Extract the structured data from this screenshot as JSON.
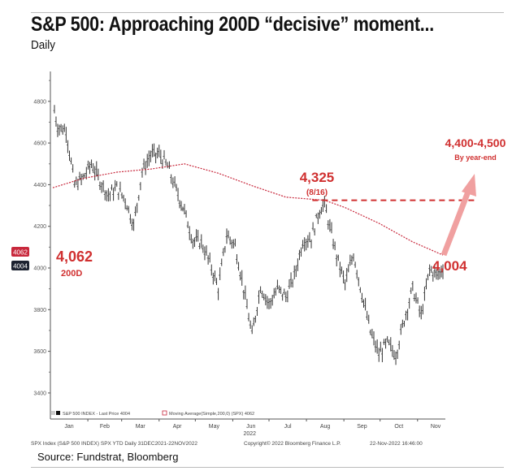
{
  "header": {
    "title": "S&P 500: Approaching 200D “decisive” moment...",
    "subtitle": "Daily"
  },
  "source": "Source: Fundstrat, Bloomberg",
  "footer": {
    "left": "SPX Index (S&P 500 INDEX) SPX YTD  Daily 31DEC2021-22NOV2022",
    "center": "Copyright© 2022 Bloomberg Finance L.P.",
    "right": "22-Nov-2022 16:46:00"
  },
  "legend": {
    "price": "S&P 500 INDEX - Last Price 4004",
    "ma": "Moving Average(Simple,200,0) (SPX) 4062"
  },
  "annotations": {
    "ma_value": "4,062",
    "ma_label": "200D",
    "peak_value": "4,325",
    "peak_date": "(8/16)",
    "last_value": "4,004",
    "target_value": "4,400-4,500",
    "target_label": "By year-end",
    "tag_ma": "4062",
    "tag_price": "4004"
  },
  "colors": {
    "price": "#333333",
    "ma": "#c8283c",
    "annotation": "#d03030",
    "arrow": "#f0a0a0",
    "tag_ma": "#c8283c",
    "tag_price": "#1c2230"
  },
  "chart_data": {
    "type": "line",
    "title": "S&P 500: Approaching 200D “decisive” moment...",
    "xlabel": "2022",
    "ylabel": "",
    "ylim": [
      3350,
      4900
    ],
    "yticks": [
      3400,
      3600,
      3800,
      4000,
      4200,
      4400,
      4600,
      4800
    ],
    "xticks": [
      "Jan",
      "Feb",
      "Mar",
      "Apr",
      "May",
      "Jun",
      "Jul",
      "Aug",
      "Sep",
      "Oct",
      "Nov"
    ],
    "grid": false,
    "legend_placement": "bottom-left",
    "reference_line": {
      "value": 4325,
      "style": "dashed",
      "from": "2022-08-16"
    },
    "target_range": [
      4400,
      4500
    ],
    "series": [
      {
        "name": "S&P 500 INDEX - Last Price",
        "style": "bars",
        "points": [
          [
            "2022-01-03",
            4796
          ],
          [
            "2022-01-07",
            4677
          ],
          [
            "2022-01-14",
            4662
          ],
          [
            "2022-01-21",
            4398
          ],
          [
            "2022-01-28",
            4432
          ],
          [
            "2022-02-04",
            4500
          ],
          [
            "2022-02-11",
            4419
          ],
          [
            "2022-02-18",
            4349
          ],
          [
            "2022-02-25",
            4385
          ],
          [
            "2022-03-04",
            4329
          ],
          [
            "2022-03-11",
            4204
          ],
          [
            "2022-03-18",
            4463
          ],
          [
            "2022-03-25",
            4543
          ],
          [
            "2022-04-01",
            4546
          ],
          [
            "2022-04-08",
            4488
          ],
          [
            "2022-04-14",
            4392
          ],
          [
            "2022-04-22",
            4272
          ],
          [
            "2022-04-29",
            4132
          ],
          [
            "2022-05-06",
            4123
          ],
          [
            "2022-05-13",
            4023
          ],
          [
            "2022-05-20",
            3901
          ],
          [
            "2022-05-27",
            4158
          ],
          [
            "2022-06-03",
            4108
          ],
          [
            "2022-06-10",
            3901
          ],
          [
            "2022-06-17",
            3675
          ],
          [
            "2022-06-24",
            3912
          ],
          [
            "2022-07-01",
            3825
          ],
          [
            "2022-07-08",
            3899
          ],
          [
            "2022-07-15",
            3863
          ],
          [
            "2022-07-22",
            3961
          ],
          [
            "2022-07-29",
            4130
          ],
          [
            "2022-08-05",
            4145
          ],
          [
            "2022-08-12",
            4280
          ],
          [
            "2022-08-16",
            4305
          ],
          [
            "2022-08-19",
            4228
          ],
          [
            "2022-08-26",
            4058
          ],
          [
            "2022-09-02",
            3924
          ],
          [
            "2022-09-09",
            4067
          ],
          [
            "2022-09-16",
            3873
          ],
          [
            "2022-09-23",
            3693
          ],
          [
            "2022-09-30",
            3586
          ],
          [
            "2022-10-07",
            3639
          ],
          [
            "2022-10-14",
            3583
          ],
          [
            "2022-10-21",
            3752
          ],
          [
            "2022-10-28",
            3901
          ],
          [
            "2022-11-04",
            3771
          ],
          [
            "2022-11-11",
            3993
          ],
          [
            "2022-11-18",
            3965
          ],
          [
            "2022-11-22",
            4004
          ]
        ]
      },
      {
        "name": "Moving Average(Simple,200,0) (SPX)",
        "style": "dotted",
        "points": [
          [
            "2022-01-03",
            4385
          ],
          [
            "2022-01-28",
            4430
          ],
          [
            "2022-02-25",
            4460
          ],
          [
            "2022-03-25",
            4475
          ],
          [
            "2022-04-22",
            4500
          ],
          [
            "2022-05-20",
            4455
          ],
          [
            "2022-06-17",
            4395
          ],
          [
            "2022-07-15",
            4340
          ],
          [
            "2022-08-16",
            4325
          ],
          [
            "2022-09-02",
            4290
          ],
          [
            "2022-09-30",
            4215
          ],
          [
            "2022-10-28",
            4125
          ],
          [
            "2022-11-22",
            4062
          ]
        ]
      }
    ]
  }
}
